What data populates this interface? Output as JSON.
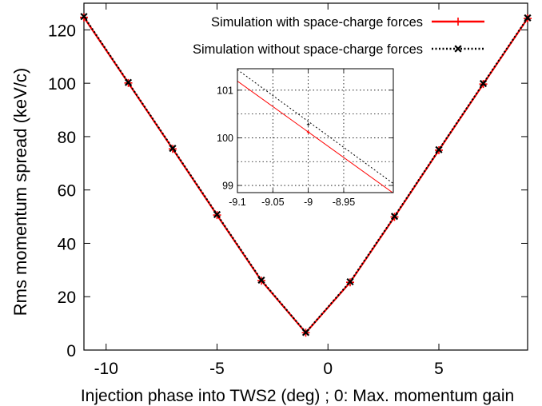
{
  "chart_data": {
    "type": "line",
    "xlabel": "Injection phase into TWS2 (deg) ; 0: Max. momentum gain",
    "ylabel": "Rms momentum spread (keV/c)",
    "xlim": [
      -11,
      9
    ],
    "ylim": [
      0,
      130
    ],
    "xticks": [
      -10,
      -5,
      0,
      5
    ],
    "yticks": [
      0,
      20,
      40,
      60,
      80,
      100,
      120
    ],
    "grid": false,
    "legend_position": "top-right",
    "series": [
      {
        "name": "Simulation with space-charge forces",
        "color": "#ff0000",
        "style": "solid",
        "marker": "plus",
        "x": [
          -11,
          -9,
          -7,
          -5,
          -3,
          -1,
          1,
          3,
          5,
          7,
          9
        ],
        "y": [
          124.7,
          100.1,
          75.4,
          50.6,
          26.0,
          6.5,
          25.4,
          49.9,
          74.9,
          99.7,
          124.3
        ]
      },
      {
        "name": "Simulation without space-charge forces",
        "color": "#000000",
        "style": "dotted",
        "marker": "cross",
        "x": [
          -11,
          -9,
          -7,
          -5,
          -3,
          -1,
          1,
          3,
          5,
          7,
          9
        ],
        "y": [
          125.0,
          100.3,
          75.6,
          50.8,
          26.2,
          6.6,
          25.6,
          50.1,
          75.1,
          99.9,
          124.5
        ]
      }
    ],
    "inset": {
      "xlim": [
        -9.1,
        -8.88
      ],
      "ylim": [
        98.85,
        101.45
      ],
      "xticks": [
        -9.1,
        -9.05,
        -9,
        -8.95
      ],
      "xtick_labels": [
        "-9.1",
        "-9.05",
        "-9",
        "-8.95"
      ],
      "yticks": [
        99,
        100,
        101
      ],
      "grid": true,
      "series": [
        {
          "color": "#ff0000",
          "style": "solid",
          "x": [
            -9.1,
            -8.88
          ],
          "y": [
            101.19,
            98.84
          ]
        },
        {
          "color": "#000000",
          "style": "dotted",
          "x": [
            -9.1,
            -8.88
          ],
          "y": [
            101.43,
            99.04
          ]
        }
      ],
      "markers": [
        {
          "series": 0,
          "x": -9,
          "y": 100.12
        },
        {
          "series": 1,
          "x": -9,
          "y": 100.28
        }
      ]
    }
  }
}
